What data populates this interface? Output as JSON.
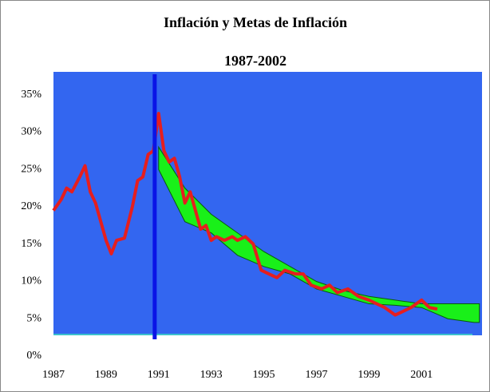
{
  "chart_data": {
    "type": "line",
    "title": "Inflación y Metas de Inflación",
    "subtitle": "1987-2002",
    "xlim": [
      1987,
      2003.3
    ],
    "xticks": [
      1987,
      1989,
      1991,
      1993,
      1995,
      1997,
      1999,
      2001
    ],
    "ylim": [
      0,
      38
    ],
    "yticks": [
      {
        "value": 0,
        "label": "0%"
      },
      {
        "value": 5,
        "label": "5%"
      },
      {
        "value": 10,
        "label": "10%"
      },
      {
        "value": 15,
        "label": "15%"
      },
      {
        "value": 20,
        "label": "20%"
      },
      {
        "value": 25,
        "label": "25%"
      },
      {
        "value": 30,
        "label": "30%"
      },
      {
        "value": 35,
        "label": "35%"
      }
    ],
    "vline": 1990.85,
    "vline_color": "#0a14e6",
    "band": {
      "color": "#19f019",
      "x": [
        1991,
        1992,
        1993,
        1994,
        1995,
        1996,
        1997,
        1998,
        1999,
        2000,
        2001,
        2002,
        2003,
        2003.2
      ],
      "upper": [
        28,
        22.5,
        19,
        16.5,
        14,
        12,
        10,
        8.8,
        8,
        7.5,
        7,
        7,
        7,
        7
      ],
      "lower": [
        25,
        18,
        16.5,
        13.5,
        12,
        11,
        9,
        8,
        7,
        6.8,
        6.5,
        5,
        4.5,
        4.5
      ]
    },
    "series": [
      {
        "color": "#e61e1e",
        "x": [
          1987,
          1987.3,
          1987.5,
          1987.7,
          1988,
          1988.2,
          1988.4,
          1988.6,
          1988.8,
          1989,
          1989.2,
          1989.4,
          1989.7,
          1990,
          1990.2,
          1990.4,
          1990.6,
          1990.8,
          1991,
          1991.2,
          1991.4,
          1991.6,
          1991.8,
          1992,
          1992.2,
          1992.4,
          1992.6,
          1992.8,
          1993,
          1993.2,
          1993.5,
          1993.8,
          1994,
          1994.3,
          1994.6,
          1994.9,
          1995.2,
          1995.5,
          1995.8,
          1996.2,
          1996.5,
          1996.8,
          1997.2,
          1997.5,
          1997.8,
          1998.2,
          1998.6,
          1999,
          1999.3,
          1999.6,
          2000,
          2000.3,
          2000.6,
          2001,
          2001.3,
          2001.6
        ],
        "values": [
          19.5,
          21,
          22.5,
          22,
          24,
          25.5,
          22,
          20.5,
          18,
          15.5,
          13.7,
          15.5,
          15.8,
          20,
          23.5,
          24,
          27,
          27.5,
          32.5,
          27.5,
          26,
          26.5,
          24,
          20.5,
          22,
          19.5,
          17,
          17.5,
          15.5,
          16,
          15.5,
          16,
          15.5,
          16,
          15,
          11.5,
          11,
          10.5,
          11.5,
          11,
          11,
          9.5,
          9,
          9.5,
          8.5,
          9,
          8,
          7.5,
          7,
          6.5,
          5.5,
          6,
          6.5,
          7.5,
          6.5,
          6.3
        ]
      }
    ]
  }
}
